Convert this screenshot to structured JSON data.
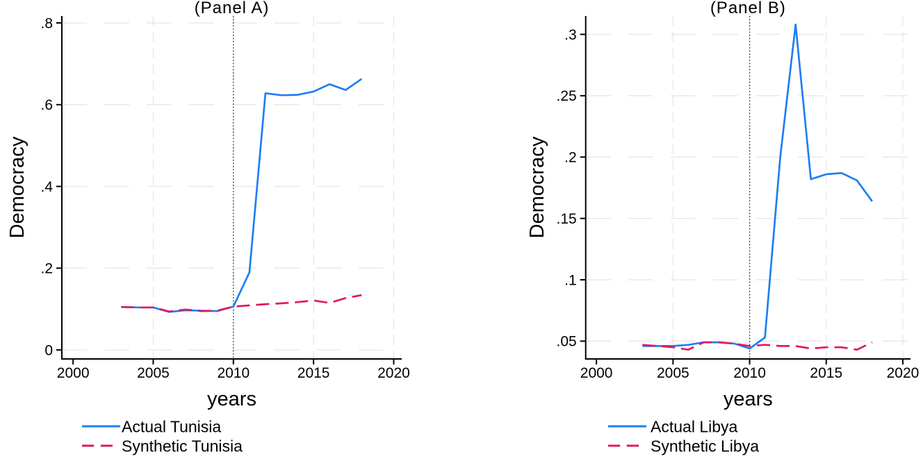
{
  "figure": {
    "background": "#ffffff",
    "text_color": "#000000",
    "grid_color": "#e5e5e5",
    "axis_color": "#000000",
    "treatment_line_color": "#303030",
    "actual_color": "#1f7ef2",
    "synthetic_color": "#e0195e"
  },
  "chart_data": [
    {
      "type": "line",
      "title": "(Panel A)",
      "xlabel": "years",
      "ylabel": "Democracy",
      "treatment_year": 2010,
      "xlim": [
        1999.3,
        2020.5
      ],
      "ylim": [
        -0.022,
        0.817
      ],
      "xticks": {
        "values": [
          2000,
          2005,
          2010,
          2015,
          2020
        ],
        "labels": [
          "2000",
          "2005",
          "2010",
          "2015",
          "2020"
        ],
        "grid": [
          2005,
          2010,
          2015,
          2020
        ]
      },
      "yticks": {
        "values": [
          0,
          0.2,
          0.4,
          0.6,
          0.8
        ],
        "labels": [
          "0",
          ".2",
          ".4",
          ".6",
          ".8"
        ]
      },
      "x": [
        2003,
        2004,
        2005,
        2006,
        2007,
        2008,
        2009,
        2010,
        2011,
        2012,
        2013,
        2014,
        2015,
        2016,
        2017,
        2018
      ],
      "series": [
        {
          "name": "Actual Tunisia",
          "line": "solid",
          "color_key": "actual_color",
          "values": [
            0.105,
            0.104,
            0.104,
            0.093,
            0.097,
            0.096,
            0.095,
            0.106,
            0.19,
            0.628,
            0.623,
            0.624,
            0.632,
            0.65,
            0.636,
            0.663
          ]
        },
        {
          "name": "Synthetic Tunisia",
          "line": "dashed",
          "color_key": "synthetic_color",
          "values": [
            0.105,
            0.104,
            0.104,
            0.094,
            0.099,
            0.095,
            0.096,
            0.106,
            0.109,
            0.112,
            0.114,
            0.117,
            0.121,
            0.115,
            0.127,
            0.134
          ]
        }
      ],
      "legend_position": "below-left",
      "grid": true
    },
    {
      "type": "line",
      "title": "(Panel B)",
      "xlabel": "years",
      "ylabel": "Democracy",
      "treatment_year": 2010,
      "xlim": [
        1999.3,
        2020.5
      ],
      "ylim": [
        0.0355,
        0.315
      ],
      "xticks": {
        "values": [
          2000,
          2005,
          2010,
          2015,
          2020
        ],
        "labels": [
          "2000",
          "2005",
          "2010",
          "2015",
          "2020"
        ],
        "grid": [
          2005,
          2010,
          2015,
          2020
        ]
      },
      "yticks": {
        "values": [
          0.05,
          0.1,
          0.15,
          0.2,
          0.25,
          0.3
        ],
        "labels": [
          ".05",
          ".1",
          ".15",
          ".2",
          ".25",
          ".3"
        ]
      },
      "x": [
        2003,
        2004,
        2005,
        2006,
        2007,
        2008,
        2009,
        2010,
        2011,
        2012,
        2013,
        2014,
        2015,
        2016,
        2017,
        2018
      ],
      "series": [
        {
          "name": "Actual Libya",
          "line": "solid",
          "color_key": "actual_color",
          "values": [
            0.046,
            0.046,
            0.046,
            0.047,
            0.049,
            0.049,
            0.048,
            0.044,
            0.053,
            0.2,
            0.308,
            0.182,
            0.186,
            0.187,
            0.181,
            0.164
          ]
        },
        {
          "name": "Synthetic Libya",
          "line": "dashed",
          "color_key": "synthetic_color",
          "values": [
            0.047,
            0.046,
            0.045,
            0.043,
            0.049,
            0.049,
            0.048,
            0.046,
            0.047,
            0.046,
            0.046,
            0.044,
            0.045,
            0.045,
            0.043,
            0.049
          ]
        }
      ],
      "legend_position": "below-left",
      "grid": true
    }
  ]
}
